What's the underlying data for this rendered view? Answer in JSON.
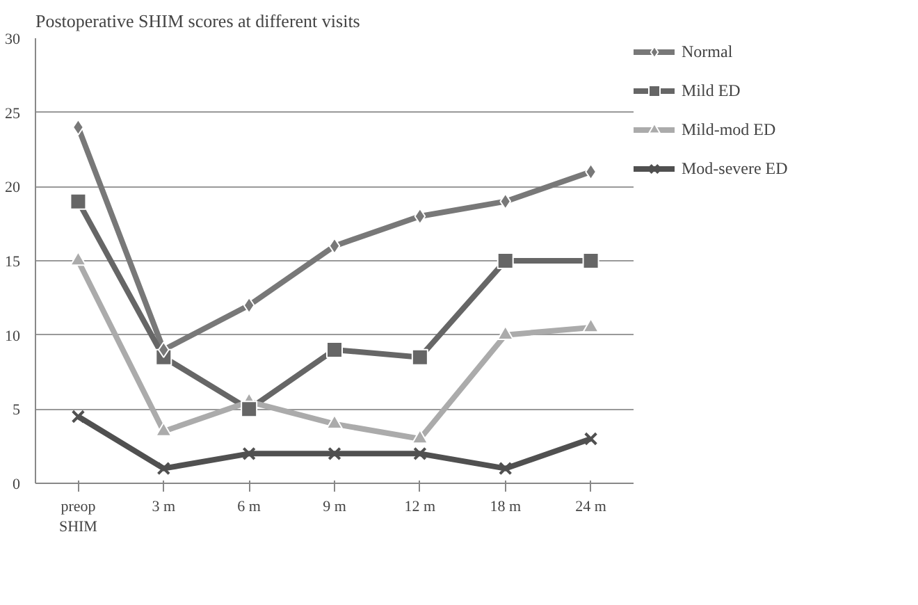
{
  "chart_data": {
    "type": "line",
    "title": "Postoperative SHIM scores at different visits",
    "categories": [
      "preop\nSHIM",
      "3 m",
      "6 m",
      "9 m",
      "12 m",
      "18 m",
      "24 m"
    ],
    "series": [
      {
        "name": "Normal",
        "color": "#787878",
        "marker": "diamond",
        "values": [
          24,
          9,
          12,
          16,
          18,
          19,
          21
        ]
      },
      {
        "name": "Mild ED",
        "color": "#666666",
        "marker": "square",
        "values": [
          19,
          8.5,
          5,
          9,
          8.5,
          15,
          15
        ]
      },
      {
        "name": "Mild-mod ED",
        "color": "#ababab",
        "marker": "triangle",
        "values": [
          15,
          3.5,
          5.5,
          4,
          3,
          10,
          10.5
        ]
      },
      {
        "name": "Mod-severe ED",
        "color": "#505050",
        "marker": "cross",
        "values": [
          4.5,
          1,
          2,
          2,
          2,
          1,
          3
        ]
      }
    ],
    "ylim": [
      0,
      30
    ],
    "yticks": [
      0,
      5,
      10,
      15,
      20,
      25,
      30
    ],
    "grid": "y",
    "legend": "right",
    "line_style": "solid"
  }
}
